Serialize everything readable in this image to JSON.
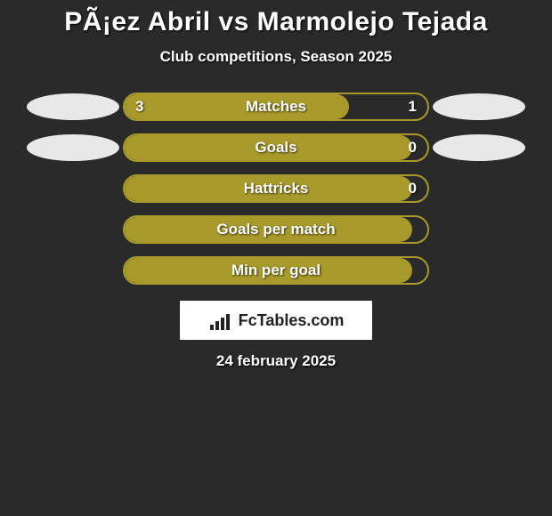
{
  "title": "PÃ¡ez Abril vs Marmolejo Tejada",
  "subtitle": "Club competitions, Season 2025",
  "date": "24 february 2025",
  "logo_text_a": "Fc",
  "logo_text_b": "Tables.com",
  "colors": {
    "bg": "#2a2a2a",
    "bar_fill": "#a89a2a",
    "bar_border": "#a89a2a",
    "jersey": "#e8e8e8",
    "text": "#ffffff"
  },
  "rows": [
    {
      "label": "Matches",
      "left_val": "3",
      "right_val": "1",
      "fill_pct": 74,
      "show_left_val": true,
      "show_right_val": true,
      "show_left_jersey": true,
      "show_right_jersey": true
    },
    {
      "label": "Goals",
      "left_val": "",
      "right_val": "0",
      "fill_pct": 95,
      "show_left_val": false,
      "show_right_val": true,
      "show_left_jersey": true,
      "show_right_jersey": true
    },
    {
      "label": "Hattricks",
      "left_val": "",
      "right_val": "0",
      "fill_pct": 95,
      "show_left_val": false,
      "show_right_val": true,
      "show_left_jersey": false,
      "show_right_jersey": false
    },
    {
      "label": "Goals per match",
      "left_val": "",
      "right_val": "",
      "fill_pct": 95,
      "show_left_val": false,
      "show_right_val": false,
      "show_left_jersey": false,
      "show_right_jersey": false
    },
    {
      "label": "Min per goal",
      "left_val": "",
      "right_val": "",
      "fill_pct": 95,
      "show_left_val": false,
      "show_right_val": false,
      "show_left_jersey": false,
      "show_right_jersey": false
    }
  ]
}
